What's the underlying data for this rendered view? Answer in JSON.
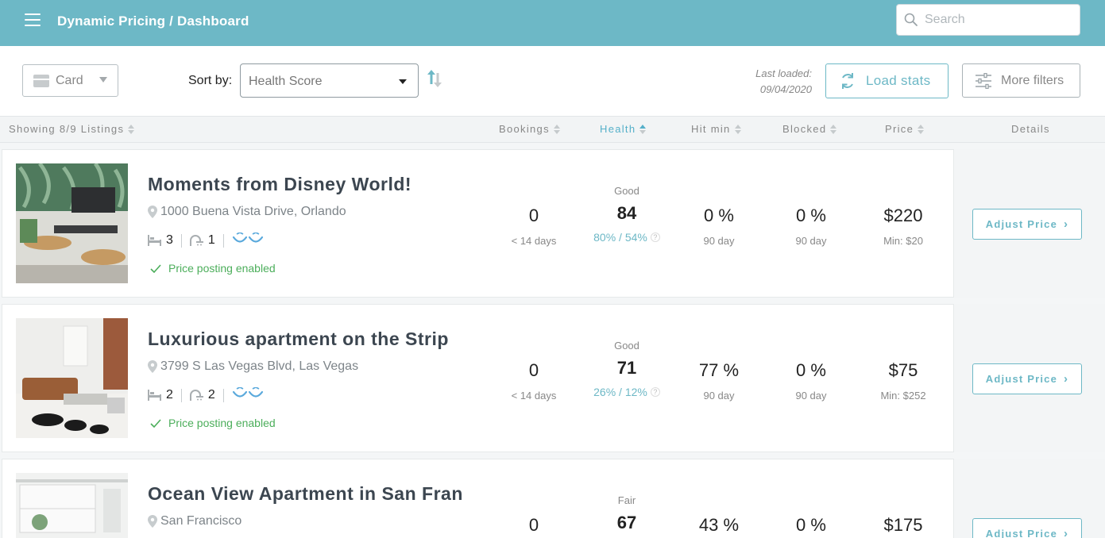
{
  "header": {
    "title": "Dynamic Pricing / Dashboard",
    "search_placeholder": "Search"
  },
  "toolbar": {
    "view_label": "Card",
    "sort_label": "Sort by:",
    "sort_value": "Health Score",
    "last_loaded_label": "Last loaded:",
    "last_loaded_date": "09/04/2020",
    "load_stats_label": "Load stats",
    "more_filters_label": "More filters"
  },
  "columns": {
    "showing": "Showing 8/9 Listings",
    "bookings": "Bookings",
    "health": "Health",
    "hit_min": "Hit min",
    "blocked": "Blocked",
    "price": "Price",
    "details": "Details"
  },
  "listings": [
    {
      "title": "Moments from Disney World!",
      "address": "1000 Buena Vista Drive, Orlando",
      "beds": "3",
      "baths": "1",
      "status": "Price posting enabled",
      "bookings": "0",
      "bookings_sub": "< 14 days",
      "health_rating": "Good",
      "health_score": "84",
      "health_pct": "80% / 54%",
      "hit_min": "0 %",
      "hit_min_sub": "90 day",
      "blocked": "0 %",
      "blocked_sub": "90 day",
      "price": "$220",
      "price_min": "Min: $20",
      "action": "Adjust Price"
    },
    {
      "title": "Luxurious apartment on the Strip",
      "address": "3799 S Las Vegas Blvd, Las Vegas",
      "beds": "2",
      "baths": "2",
      "status": "Price posting enabled",
      "bookings": "0",
      "bookings_sub": "< 14 days",
      "health_rating": "Good",
      "health_score": "71",
      "health_pct": "26% / 12%",
      "hit_min": "77 %",
      "hit_min_sub": "90 day",
      "blocked": "0 %",
      "blocked_sub": "90 day",
      "price": "$75",
      "price_min": "Min: $252",
      "action": "Adjust Price"
    },
    {
      "title": "Ocean View Apartment in San Fran",
      "address": "San Francisco",
      "health_rating": "Fair",
      "bookings": "0",
      "health_score": "67",
      "hit_min": "43 %",
      "blocked": "0 %",
      "price": "$175",
      "action": "Adjust Price"
    }
  ],
  "colors": {
    "brand": "#6db8c6",
    "success": "#4cae5b"
  },
  "icons": [
    "menu-icon",
    "search-icon",
    "card-view-icon",
    "sort-direction-icon",
    "refresh-icon",
    "filter-sliders-icon",
    "location-pin-icon",
    "bed-icon",
    "bath-icon",
    "smile-icon",
    "checkmark-icon",
    "chevron-right-icon"
  ]
}
